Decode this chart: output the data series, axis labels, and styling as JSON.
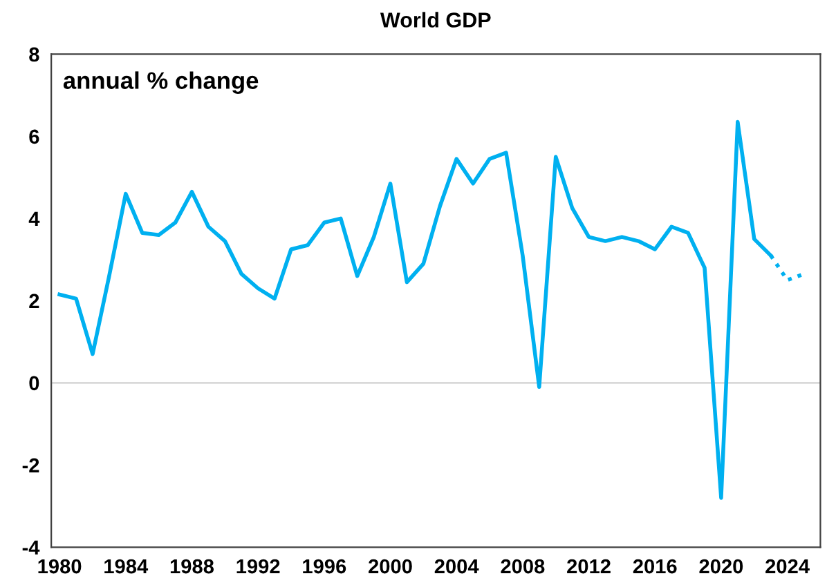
{
  "chart_data": {
    "type": "line",
    "title": "World GDP",
    "annotations": [
      "annual % change"
    ],
    "xlim": [
      1979.5,
      2026
    ],
    "xticks": [
      1980,
      1984,
      1988,
      1992,
      1996,
      2000,
      2004,
      2008,
      2012,
      2016,
      2020,
      2024
    ],
    "ylim": [
      -4,
      8
    ],
    "yticks": [
      -4,
      -2,
      0,
      2,
      4,
      6,
      8
    ],
    "grid": false,
    "ref_lines": [
      {
        "axis": "y",
        "value": 0,
        "color": "#d9d9d9"
      }
    ],
    "series": [
      {
        "color": "#00b0f0",
        "line_style": "solid",
        "x": [
          1980,
          1981,
          1982,
          1983,
          1984,
          1985,
          1986,
          1987,
          1988,
          1989,
          1990,
          1991,
          1992,
          1993,
          1994,
          1995,
          1996,
          1997,
          1998,
          1999,
          2000,
          2001,
          2002,
          2003,
          2004,
          2005,
          2006,
          2007,
          2008,
          2009,
          2010,
          2011,
          2012,
          2013,
          2014,
          2015,
          2016,
          2017,
          2018,
          2019,
          2020,
          2021,
          2022,
          2023
        ],
        "values": [
          2.15,
          2.05,
          0.7,
          2.6,
          4.6,
          3.65,
          3.6,
          3.9,
          4.65,
          3.8,
          3.45,
          2.65,
          2.3,
          2.05,
          3.25,
          3.35,
          3.9,
          4.0,
          2.6,
          3.55,
          4.85,
          2.45,
          2.9,
          4.3,
          5.45,
          4.85,
          5.45,
          5.6,
          3.1,
          -0.1,
          5.5,
          4.25,
          3.55,
          3.45,
          3.55,
          3.45,
          3.25,
          3.8,
          3.65,
          2.8,
          -2.8,
          6.35,
          3.5,
          3.1
        ]
      },
      {
        "color": "#00b0f0",
        "line_style": "dotted",
        "x": [
          2023,
          2024,
          2025
        ],
        "values": [
          3.1,
          2.5,
          2.65
        ]
      }
    ]
  }
}
